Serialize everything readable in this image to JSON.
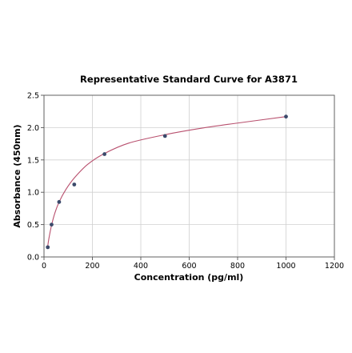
{
  "chart_data": {
    "type": "scatter",
    "title": "Representative Standard Curve for A3871",
    "xlabel": "Concentration (pg/ml)",
    "ylabel": "Absorbance (450nm)",
    "xlim": [
      0,
      1200
    ],
    "ylim": [
      0,
      2.5
    ],
    "x_ticks": [
      "0",
      "200",
      "400",
      "600",
      "800",
      "1000",
      "1200"
    ],
    "y_ticks": [
      "0.0",
      "0.5",
      "1.0",
      "1.5",
      "2.0",
      "2.5"
    ],
    "grid": true,
    "series": [
      {
        "points": [
          {
            "x": 15.6,
            "y": 0.15
          },
          {
            "x": 31.25,
            "y": 0.5
          },
          {
            "x": 62.5,
            "y": 0.85
          },
          {
            "x": 125,
            "y": 1.12
          },
          {
            "x": 250,
            "y": 1.59
          },
          {
            "x": 500,
            "y": 1.87
          },
          {
            "x": 1000,
            "y": 2.17
          }
        ]
      }
    ],
    "fit_curve": {
      "x": [
        15.6,
        20,
        31.25,
        45,
        62.5,
        90,
        125,
        180,
        250,
        350,
        500,
        650,
        800,
        1000
      ],
      "y": [
        0.17,
        0.28,
        0.49,
        0.68,
        0.85,
        1.04,
        1.22,
        1.43,
        1.6,
        1.76,
        1.89,
        1.99,
        2.07,
        2.17
      ]
    },
    "colors": {
      "points": "#3b4a6b",
      "curve": "#b8506e",
      "grid": "#d0d0d0",
      "frame": "#555555"
    }
  }
}
